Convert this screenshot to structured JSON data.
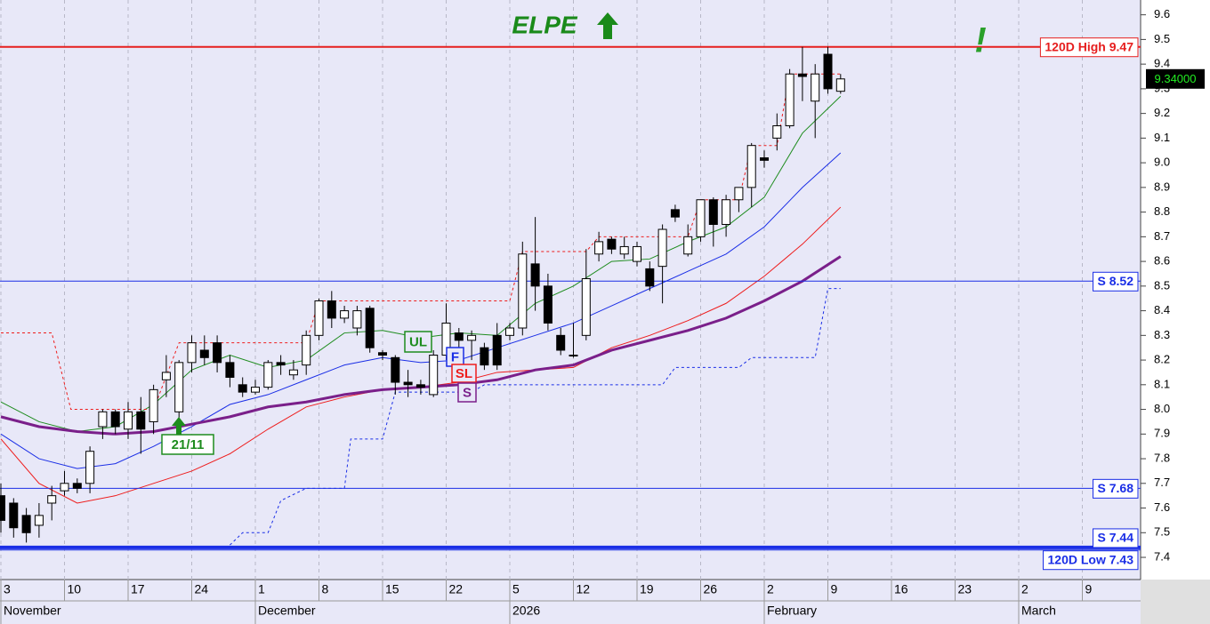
{
  "chart_data": {
    "type": "candlestick",
    "title": "ELPE",
    "alert": "!",
    "x": [
      0,
      1,
      2,
      3,
      4,
      5,
      6,
      7,
      8,
      9,
      10,
      11,
      12,
      13,
      14,
      15,
      16,
      17,
      18,
      19,
      20,
      21,
      22,
      23,
      24,
      25,
      26,
      27,
      28,
      29,
      30,
      31,
      32,
      33,
      34,
      35,
      36,
      37,
      38,
      39,
      40,
      41,
      42,
      43,
      44,
      45,
      46,
      47,
      48,
      49,
      50,
      51,
      52,
      53,
      54,
      55,
      56,
      57,
      58,
      59,
      60,
      61,
      62,
      63,
      64,
      65,
      66
    ],
    "open": [
      7.65,
      7.62,
      7.57,
      7.53,
      7.62,
      7.67,
      7.7,
      7.7,
      7.93,
      7.99,
      7.92,
      7.99,
      7.95,
      8.12,
      7.99,
      8.19,
      8.24,
      8.27,
      8.19,
      8.1,
      8.07,
      8.09,
      8.19,
      8.14,
      8.18,
      8.3,
      8.44,
      8.37,
      8.33,
      8.41,
      8.23,
      8.21,
      8.11,
      8.1,
      8.06,
      8.22,
      8.31,
      8.28,
      8.25,
      8.3,
      8.3,
      8.33,
      8.59,
      8.5,
      8.3,
      8.22,
      8.3,
      8.63,
      8.69,
      8.63,
      8.6,
      8.57,
      8.58,
      8.81,
      8.63,
      8.7,
      8.85,
      8.75,
      8.85,
      8.9,
      9.02,
      9.1,
      9.15,
      9.36,
      9.25,
      9.44,
      9.29
    ],
    "high": [
      7.7,
      7.64,
      7.6,
      7.62,
      7.69,
      7.75,
      7.72,
      7.85,
      8.0,
      8.0,
      8.03,
      8.05,
      8.1,
      8.22,
      8.2,
      8.3,
      8.3,
      8.3,
      8.22,
      8.13,
      8.12,
      8.2,
      8.22,
      8.2,
      8.32,
      8.45,
      8.48,
      8.42,
      8.42,
      8.42,
      8.24,
      8.22,
      8.16,
      8.12,
      8.24,
      8.43,
      8.33,
      8.32,
      8.27,
      8.35,
      8.35,
      8.68,
      8.78,
      8.55,
      8.33,
      8.35,
      8.65,
      8.72,
      8.7,
      8.7,
      8.68,
      8.6,
      8.75,
      8.83,
      8.75,
      8.85,
      8.86,
      8.87,
      8.9,
      9.08,
      9.05,
      9.2,
      9.38,
      9.47,
      9.4,
      9.47,
      9.36
    ],
    "low": [
      7.5,
      7.48,
      7.46,
      7.48,
      7.55,
      7.65,
      7.66,
      7.66,
      7.88,
      7.9,
      7.88,
      7.82,
      7.9,
      8.05,
      7.95,
      8.15,
      8.18,
      8.15,
      8.09,
      8.05,
      8.06,
      8.08,
      8.14,
      8.12,
      8.14,
      8.28,
      8.33,
      8.35,
      8.3,
      8.23,
      8.2,
      8.06,
      8.05,
      8.06,
      8.05,
      8.2,
      8.25,
      8.2,
      8.16,
      8.16,
      8.28,
      8.3,
      8.4,
      8.32,
      8.22,
      8.21,
      8.28,
      8.6,
      8.63,
      8.61,
      8.58,
      8.48,
      8.43,
      8.76,
      8.62,
      8.68,
      8.66,
      8.7,
      8.8,
      8.82,
      8.98,
      9.05,
      9.14,
      9.25,
      9.1,
      9.28,
      9.28
    ],
    "close": [
      7.55,
      7.52,
      7.5,
      7.57,
      7.65,
      7.7,
      7.68,
      7.83,
      7.99,
      7.93,
      7.99,
      7.92,
      8.08,
      8.15,
      8.19,
      8.27,
      8.21,
      8.19,
      8.13,
      8.07,
      8.09,
      8.19,
      8.18,
      8.16,
      8.3,
      8.44,
      8.37,
      8.4,
      8.4,
      8.25,
      8.22,
      8.11,
      8.1,
      8.09,
      8.22,
      8.35,
      8.28,
      8.3,
      8.18,
      8.18,
      8.33,
      8.63,
      8.5,
      8.35,
      8.24,
      8.22,
      8.53,
      8.68,
      8.65,
      8.66,
      8.66,
      8.5,
      8.73,
      8.78,
      8.7,
      8.85,
      8.75,
      8.85,
      8.9,
      9.07,
      9.01,
      9.15,
      9.36,
      9.35,
      9.36,
      9.3,
      9.34
    ],
    "series": [
      {
        "color": "#1e8c1e",
        "width": 1,
        "x": [
          0,
          3,
          6,
          9,
          12,
          15,
          18,
          21,
          24,
          27,
          30,
          33,
          36,
          39,
          42,
          45,
          48,
          51,
          54,
          57,
          60,
          63,
          66
        ],
        "values": [
          8.03,
          7.95,
          7.91,
          7.93,
          8.02,
          8.16,
          8.22,
          8.17,
          8.2,
          8.31,
          8.32,
          8.29,
          8.31,
          8.3,
          8.43,
          8.5,
          8.6,
          8.61,
          8.68,
          8.74,
          8.86,
          9.12,
          9.27
        ]
      },
      {
        "color": "#1a2ee6",
        "width": 1,
        "x": [
          0,
          3,
          6,
          9,
          12,
          15,
          18,
          21,
          24,
          27,
          30,
          33,
          36,
          39,
          42,
          45,
          48,
          51,
          54,
          57,
          60,
          63,
          66
        ],
        "values": [
          7.9,
          7.8,
          7.76,
          7.78,
          7.85,
          7.93,
          8.02,
          8.06,
          8.12,
          8.18,
          8.21,
          8.19,
          8.2,
          8.25,
          8.3,
          8.35,
          8.42,
          8.49,
          8.56,
          8.63,
          8.74,
          8.9,
          9.04
        ]
      },
      {
        "color": "#ee1c1c",
        "width": 1,
        "x": [
          0,
          3,
          6,
          9,
          12,
          15,
          18,
          21,
          24,
          27,
          30,
          33,
          36,
          39,
          42,
          45,
          48,
          51,
          54,
          57,
          60,
          63,
          66
        ],
        "values": [
          7.88,
          7.7,
          7.62,
          7.65,
          7.7,
          7.75,
          7.82,
          7.92,
          8.01,
          8.05,
          8.08,
          8.09,
          8.11,
          8.15,
          8.16,
          8.17,
          8.25,
          8.3,
          8.36,
          8.43,
          8.54,
          8.67,
          8.82
        ]
      },
      {
        "color": "#7a1f8a",
        "width": 3,
        "x": [
          0,
          3,
          6,
          9,
          12,
          15,
          18,
          21,
          24,
          27,
          30,
          33,
          36,
          39,
          42,
          45,
          48,
          51,
          54,
          57,
          60,
          63,
          66
        ],
        "values": [
          7.97,
          7.93,
          7.91,
          7.9,
          7.91,
          7.94,
          7.97,
          8.01,
          8.03,
          8.06,
          8.08,
          8.09,
          8.1,
          8.12,
          8.16,
          8.18,
          8.24,
          8.28,
          8.32,
          8.37,
          8.44,
          8.52,
          8.62
        ]
      },
      {
        "color": "#ee1c1c",
        "width": 1,
        "dash": true,
        "x": [
          0,
          4,
          5.5,
          12,
          14,
          24,
          25,
          40,
          41,
          46,
          47,
          54,
          55,
          58,
          59,
          61,
          62,
          66
        ],
        "values": [
          8.31,
          8.31,
          8.0,
          8.0,
          8.27,
          8.27,
          8.44,
          8.44,
          8.64,
          8.64,
          8.7,
          8.7,
          8.85,
          8.85,
          9.07,
          9.07,
          9.36,
          9.36
        ]
      },
      {
        "color": "#1a2ee6",
        "width": 1,
        "dash": true,
        "x": [
          18,
          19,
          21,
          22,
          24,
          27,
          27.5,
          30,
          31,
          37,
          38,
          52,
          53,
          58,
          59,
          64,
          65,
          66
        ],
        "values": [
          7.45,
          7.5,
          7.5,
          7.63,
          7.68,
          7.68,
          7.88,
          7.88,
          8.07,
          8.07,
          8.1,
          8.1,
          8.17,
          8.17,
          8.21,
          8.21,
          8.49,
          8.49
        ]
      }
    ],
    "levels": [
      {
        "value": 9.47,
        "label": "120D High 9.47",
        "color": "#e61e1e",
        "width": 2
      },
      {
        "value": 8.52,
        "label": "S 8.52",
        "color": "#1a2ee6",
        "width": 1
      },
      {
        "value": 7.68,
        "label": "S 7.68",
        "color": "#1a2ee6",
        "width": 1
      },
      {
        "value": 7.44,
        "label": "S 7.44",
        "color": "#1a2ee6",
        "width": 4
      },
      {
        "value": 7.43,
        "label": "120D Low 7.43",
        "color": "#1a2ee6",
        "width": 1
      }
    ],
    "last_price": {
      "value": 9.34,
      "label": "9.34000"
    },
    "annotations": [
      {
        "text": "UL",
        "color": "#1e8c1e"
      },
      {
        "text": "F",
        "color": "#1a2ee6"
      },
      {
        "text": "SL",
        "color": "#ee1c1c"
      },
      {
        "text": "S",
        "color": "#7a1f8a"
      },
      {
        "text": "21/11",
        "color": "#1e8c1e"
      }
    ],
    "xlim": [
      -0.07,
      89.58
    ],
    "ylim": [
      7.31,
      9.66
    ],
    "xticks": [
      {
        "value": 0,
        "label": "3"
      },
      {
        "value": 5,
        "label": "10"
      },
      {
        "value": 10,
        "label": "17"
      },
      {
        "value": 15,
        "label": "24"
      },
      {
        "value": 20,
        "label": "1"
      },
      {
        "value": 25,
        "label": "8"
      },
      {
        "value": 30,
        "label": "15"
      },
      {
        "value": 35,
        "label": "22"
      },
      {
        "value": 40,
        "label": "5"
      },
      {
        "value": 45,
        "label": "12"
      },
      {
        "value": 50,
        "label": "19"
      },
      {
        "value": 55,
        "label": "26"
      },
      {
        "value": 60,
        "label": "2"
      },
      {
        "value": 65,
        "label": "9"
      },
      {
        "value": 70,
        "label": "16"
      },
      {
        "value": 75,
        "label": "23"
      },
      {
        "value": 80,
        "label": "2"
      },
      {
        "value": 85,
        "label": "9"
      }
    ],
    "months": [
      {
        "value": 0,
        "label": "November"
      },
      {
        "value": 20,
        "label": "December"
      },
      {
        "value": 40,
        "label": "2026"
      },
      {
        "value": 60,
        "label": "February"
      },
      {
        "value": 80,
        "label": "March"
      }
    ],
    "yticks": [
      7.4,
      7.5,
      7.6,
      7.7,
      7.8,
      7.9,
      {
        "value": 8,
        "label": "8.0"
      },
      8.1,
      8.2,
      8.3,
      8.4,
      8.5,
      8.6,
      8.7,
      8.8,
      8.9,
      {
        "value": 9,
        "label": "9.0"
      },
      9.1,
      9.2,
      9.3,
      9.4,
      9.5,
      9.6
    ],
    "up_color": "#ffffff",
    "down_color": "#000000",
    "grid": "x"
  }
}
